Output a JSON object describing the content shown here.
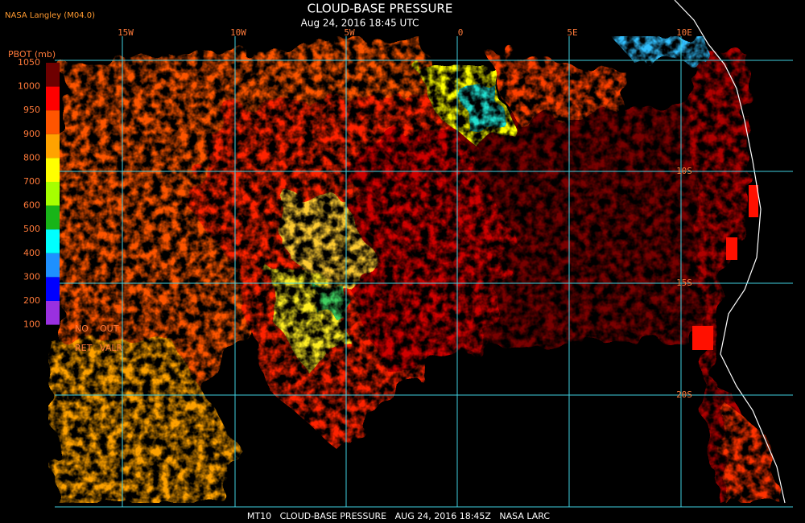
{
  "header": {
    "title": "CLOUD-BASE PRESSURE",
    "subtitle": "Aug 24, 2016 18:45 UTC",
    "source": "NASA Langley (M04.0)"
  },
  "map": {
    "longitude_labels": [
      "15W",
      "10W",
      "5W",
      "0",
      "5E",
      "10E"
    ],
    "latitude_labels": [
      "10S",
      "15S",
      "20S"
    ]
  },
  "colorbar": {
    "label": "PBOT (mb)",
    "ticks": [
      "1050",
      "1000",
      "950",
      "900",
      "800",
      "700",
      "600",
      "500",
      "400",
      "300",
      "200",
      "100"
    ],
    "colors": [
      "#6e0000",
      "#ff0000",
      "#ff5500",
      "#ffa200",
      "#ffff00",
      "#a6ff00",
      "#18b418",
      "#00ffff",
      "#1e90ff",
      "#0000ff",
      "#9a30e0"
    ],
    "notes": [
      "NO",
      "OUT",
      "RET",
      "VALR"
    ]
  },
  "footer": "MT10   CLOUD-BASE PRESSURE   AUG 24, 2016 18:45Z   NASA LARC"
}
